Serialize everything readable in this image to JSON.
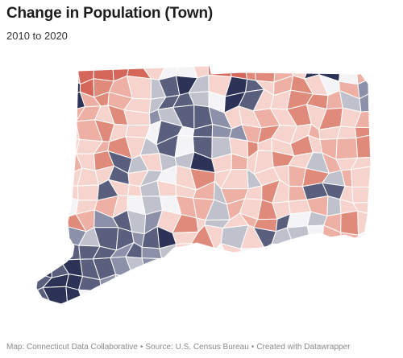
{
  "header": {
    "title": "Change in Population (Town)",
    "subtitle": "2010 to 2020"
  },
  "map": {
    "region": "Connecticut",
    "unit": "Town",
    "colors": {
      "strong_loss": "#2d3356",
      "loss": "#5a5f7e",
      "mild_loss": "#8c90a8",
      "slight_loss": "#bfc1cd",
      "no_change": "#f4f4f6",
      "slight_gain": "#f6d3cc",
      "mild_gain": "#eeb0a4",
      "gain": "#e08a7b",
      "strong_gain": "#d4675a"
    }
  },
  "footer": {
    "map_credit": "Map: Connecticut Data Collaborative",
    "source": "Source: U.S. Census Bureau",
    "created_with": "Created with Datawrapper",
    "separator": "•"
  }
}
